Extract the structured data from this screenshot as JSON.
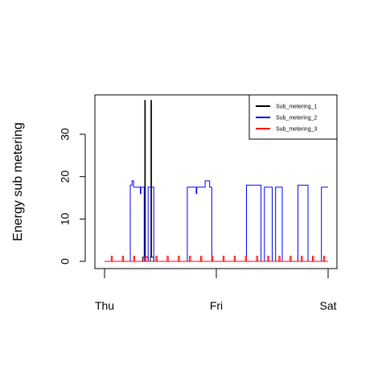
{
  "chart_data": {
    "type": "line",
    "ylabel": "Energy sub metering",
    "xlabel": "",
    "title": "",
    "xticks": [
      "Thu",
      "Fri",
      "Sat"
    ],
    "x_range_days": [
      0,
      2
    ],
    "yticks": [
      0,
      10,
      20,
      30
    ],
    "ylim": [
      -2,
      39
    ],
    "grid": false,
    "legend_position": "top-right",
    "series": [
      {
        "name": "Sub_metering_1",
        "color": "#000000",
        "points": [
          [
            0,
            0
          ],
          [
            0.34,
            0
          ],
          [
            0.34,
            1
          ],
          [
            0.355,
            1
          ],
          [
            0.355,
            0
          ],
          [
            0.36,
            0
          ],
          [
            0.36,
            38
          ],
          [
            0.365,
            38
          ],
          [
            0.365,
            1
          ],
          [
            0.38,
            1
          ],
          [
            0.38,
            1
          ],
          [
            0.39,
            1
          ],
          [
            0.39,
            0
          ],
          [
            0.41,
            0
          ],
          [
            0.41,
            1
          ],
          [
            0.415,
            1
          ],
          [
            0.415,
            38
          ],
          [
            0.42,
            38
          ],
          [
            0.42,
            1
          ],
          [
            0.44,
            1
          ],
          [
            0.44,
            0
          ],
          [
            2,
            0
          ]
        ]
      },
      {
        "name": "Sub_metering_2",
        "color": "#0000ff",
        "points": [
          [
            0,
            0
          ],
          [
            0.23,
            0
          ],
          [
            0.23,
            18
          ],
          [
            0.245,
            18
          ],
          [
            0.245,
            19
          ],
          [
            0.26,
            19
          ],
          [
            0.26,
            17.5
          ],
          [
            0.32,
            17.5
          ],
          [
            0.32,
            16
          ],
          [
            0.325,
            16
          ],
          [
            0.325,
            17.5
          ],
          [
            0.355,
            17.5
          ],
          [
            0.355,
            0
          ],
          [
            0.39,
            0
          ],
          [
            0.39,
            17.5
          ],
          [
            0.44,
            17.5
          ],
          [
            0.44,
            0
          ],
          [
            0.74,
            0
          ],
          [
            0.74,
            17.5
          ],
          [
            0.82,
            17.5
          ],
          [
            0.82,
            16
          ],
          [
            0.825,
            16
          ],
          [
            0.825,
            17.5
          ],
          [
            0.9,
            17.5
          ],
          [
            0.9,
            19
          ],
          [
            0.94,
            19
          ],
          [
            0.94,
            17.5
          ],
          [
            0.96,
            17.5
          ],
          [
            0.96,
            0
          ],
          [
            1.27,
            0
          ],
          [
            1.27,
            18
          ],
          [
            1.4,
            18
          ],
          [
            1.4,
            0
          ],
          [
            1.43,
            0
          ],
          [
            1.43,
            17.5
          ],
          [
            1.5,
            17.5
          ],
          [
            1.5,
            0
          ],
          [
            1.53,
            0
          ],
          [
            1.53,
            17.5
          ],
          [
            1.59,
            17.5
          ],
          [
            1.59,
            0
          ],
          [
            1.73,
            0
          ],
          [
            1.73,
            18
          ],
          [
            1.82,
            18
          ],
          [
            1.82,
            0
          ],
          [
            1.94,
            0
          ],
          [
            1.94,
            17.5
          ],
          [
            2,
            17.5
          ]
        ]
      },
      {
        "name": "Sub_metering_3",
        "color": "#ff0000",
        "points": [
          [
            0,
            0
          ],
          [
            0.06,
            0
          ],
          [
            0.06,
            1.2
          ],
          [
            0.07,
            1.2
          ],
          [
            0.07,
            0
          ],
          [
            0.16,
            0
          ],
          [
            0.16,
            1.2
          ],
          [
            0.17,
            1.2
          ],
          [
            0.17,
            0
          ],
          [
            0.26,
            0
          ],
          [
            0.26,
            1.2
          ],
          [
            0.27,
            1.2
          ],
          [
            0.27,
            0
          ],
          [
            0.36,
            0
          ],
          [
            0.36,
            1.2
          ],
          [
            0.37,
            1.2
          ],
          [
            0.37,
            0
          ],
          [
            0.46,
            0
          ],
          [
            0.46,
            1.2
          ],
          [
            0.47,
            1.2
          ],
          [
            0.47,
            0
          ],
          [
            0.56,
            0
          ],
          [
            0.56,
            1.2
          ],
          [
            0.57,
            1.2
          ],
          [
            0.57,
            0
          ],
          [
            0.66,
            0
          ],
          [
            0.66,
            1.2
          ],
          [
            0.67,
            1.2
          ],
          [
            0.67,
            0
          ],
          [
            0.76,
            0
          ],
          [
            0.76,
            1.2
          ],
          [
            0.77,
            1.2
          ],
          [
            0.77,
            0
          ],
          [
            0.86,
            0
          ],
          [
            0.86,
            1.2
          ],
          [
            0.87,
            1.2
          ],
          [
            0.87,
            0
          ],
          [
            0.96,
            0
          ],
          [
            0.96,
            1.2
          ],
          [
            0.97,
            1.2
          ],
          [
            0.97,
            0
          ],
          [
            1.06,
            0
          ],
          [
            1.06,
            1.2
          ],
          [
            1.07,
            1.2
          ],
          [
            1.07,
            0
          ],
          [
            1.16,
            0
          ],
          [
            1.16,
            1.2
          ],
          [
            1.17,
            1.2
          ],
          [
            1.17,
            0
          ],
          [
            1.26,
            0
          ],
          [
            1.26,
            1.2
          ],
          [
            1.27,
            1.2
          ],
          [
            1.27,
            0
          ],
          [
            1.36,
            0
          ],
          [
            1.36,
            1.2
          ],
          [
            1.37,
            1.2
          ],
          [
            1.37,
            0
          ],
          [
            1.46,
            0
          ],
          [
            1.46,
            1.2
          ],
          [
            1.47,
            1.2
          ],
          [
            1.47,
            0
          ],
          [
            1.56,
            0
          ],
          [
            1.56,
            1.2
          ],
          [
            1.57,
            1.2
          ],
          [
            1.57,
            0
          ],
          [
            1.66,
            0
          ],
          [
            1.66,
            1.2
          ],
          [
            1.67,
            1.2
          ],
          [
            1.67,
            0
          ],
          [
            1.76,
            0
          ],
          [
            1.76,
            1.2
          ],
          [
            1.77,
            1.2
          ],
          [
            1.77,
            0
          ],
          [
            1.86,
            0
          ],
          [
            1.86,
            1.2
          ],
          [
            1.87,
            1.2
          ],
          [
            1.87,
            0
          ],
          [
            1.96,
            0
          ],
          [
            1.96,
            1.2
          ],
          [
            1.97,
            1.2
          ],
          [
            1.97,
            0
          ],
          [
            2,
            0
          ]
        ]
      }
    ]
  }
}
